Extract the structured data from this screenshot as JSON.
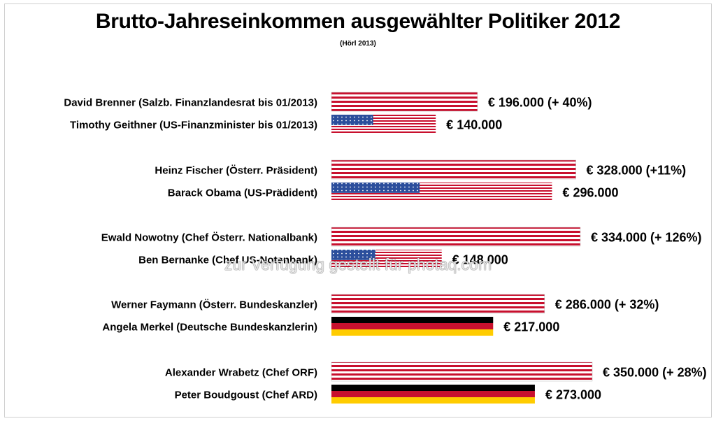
{
  "chart_data": {
    "type": "bar",
    "orientation": "horizontal",
    "title": "Brutto-Jahreseinkommen ausgewählter Politiker 2012",
    "subtitle": "(Hörl 2013)",
    "watermark": "zur Verfügung gestellt für photaq.com",
    "grid": false,
    "legend": "none",
    "xlim": [
      0,
      350000
    ],
    "bars": [
      {
        "category": "David Brenner (Salzb. Finanzlandesrat bis 01/2013)",
        "value": 196000,
        "value_label": "€ 196.000 (+ 40%)",
        "pattern": "austria"
      },
      {
        "category": "Timothy Geithner (US-Finanzminister bis 01/2013)",
        "value": 140000,
        "value_label": "€ 140.000",
        "pattern": "usa"
      },
      {
        "category": "Heinz Fischer (Österr. Präsident)",
        "value": 328000,
        "value_label": "€ 328.000 (+11%)",
        "pattern": "austria"
      },
      {
        "category": "Barack Obama (US-Prädident)",
        "value": 296000,
        "value_label": "€ 296.000",
        "pattern": "usa"
      },
      {
        "category": "Ewald Nowotny (Chef Österr. Nationalbank)",
        "value": 334000,
        "value_label": "€ 334.000 (+ 126%)",
        "pattern": "austria"
      },
      {
        "category": "Ben Bernanke (Chef US-Notenbank)",
        "value": 148000,
        "value_label": "€ 148.000",
        "pattern": "usa"
      },
      {
        "category": "Werner Faymann (Österr. Bundeskanzler)",
        "value": 286000,
        "value_label": "€ 286.000 (+ 32%)",
        "pattern": "austria"
      },
      {
        "category": "Angela Merkel (Deutsche Bundeskanzlerin)",
        "value": 217000,
        "value_label": "€ 217.000",
        "pattern": "germany"
      },
      {
        "category": "Alexander Wrabetz (Chef ORF)",
        "value": 350000,
        "value_label": "€ 350.000 (+ 28%)",
        "pattern": "austria"
      },
      {
        "category": "Peter Boudgoust (Chef ARD)",
        "value": 273000,
        "value_label": "€ 273.000",
        "pattern": "germany"
      }
    ]
  },
  "colors": {
    "red": "#c8102e",
    "white": "#ffffff",
    "blue": "#2b4e9c",
    "black": "#000000",
    "gold": "#ffcc00"
  }
}
